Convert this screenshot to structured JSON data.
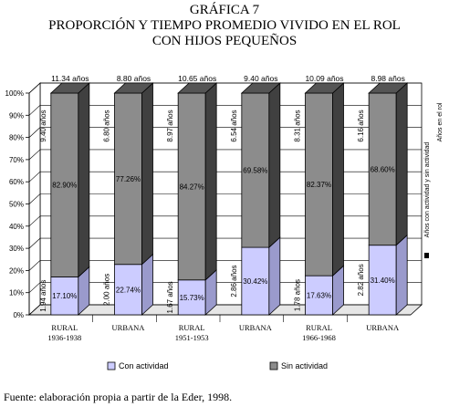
{
  "title": {
    "line1": "GRÁFICA 7",
    "line2": "PROPORCIÓN Y TIEMPO PROMEDIO VIVIDO EN EL ROL",
    "line3": "CON HIJOS PEQUEÑOS"
  },
  "source": "Fuente: elaboración propia a partir de la Eder, 1998.",
  "colors": {
    "con_actividad": "#ccccff",
    "sin_actividad": "#8c8c8c",
    "top_face": "#555555",
    "side_face": "#404040"
  },
  "chart_data": {
    "type": "bar",
    "stacked": true,
    "percent": true,
    "categories": [
      [
        "RURAL",
        "1936-1938"
      ],
      [
        "URBANA",
        ""
      ],
      [
        "RURAL",
        "1951-1953"
      ],
      [
        "URBANA",
        ""
      ],
      [
        "RURAL",
        "1966-1968"
      ],
      [
        "URBANA",
        ""
      ]
    ],
    "ylim": [
      0,
      100
    ],
    "yticks": [
      "0%",
      "10%",
      "20%",
      "30%",
      "40%",
      "50%",
      "60%",
      "70%",
      "80%",
      "90%",
      "100%"
    ],
    "grid": true,
    "legend_position": "bottom",
    "series": [
      {
        "name": "Con actividad",
        "values": [
          17.1,
          22.74,
          15.73,
          30.42,
          17.63,
          31.4
        ],
        "labels": [
          "17.10%",
          "22.74%",
          "15.73%",
          "30.42%",
          "17.63%",
          "31.40%"
        ],
        "years": [
          "1.94 años",
          "2.00 años",
          "1.67 años",
          "2.86 años",
          "1.78 años",
          "2.82 años"
        ]
      },
      {
        "name": "Sin actividad",
        "values": [
          82.9,
          77.26,
          84.27,
          69.58,
          82.37,
          68.6
        ],
        "labels": [
          "82.90%",
          "77.26%",
          "84.27%",
          "69.58%",
          "82.37%",
          "68.60%"
        ],
        "years": [
          "9.40 años",
          "6.80 años",
          "8.97 años",
          "6.54 años",
          "8.31 años",
          "6.16 años"
        ]
      }
    ],
    "totals": [
      "11.34 años",
      "8.80 años",
      "10.65 años",
      "9.40 años",
      "10.09 años",
      "8.98 años"
    ],
    "side_legend": [
      "Años en el rol",
      "Años con actividad y sin actividad"
    ]
  }
}
